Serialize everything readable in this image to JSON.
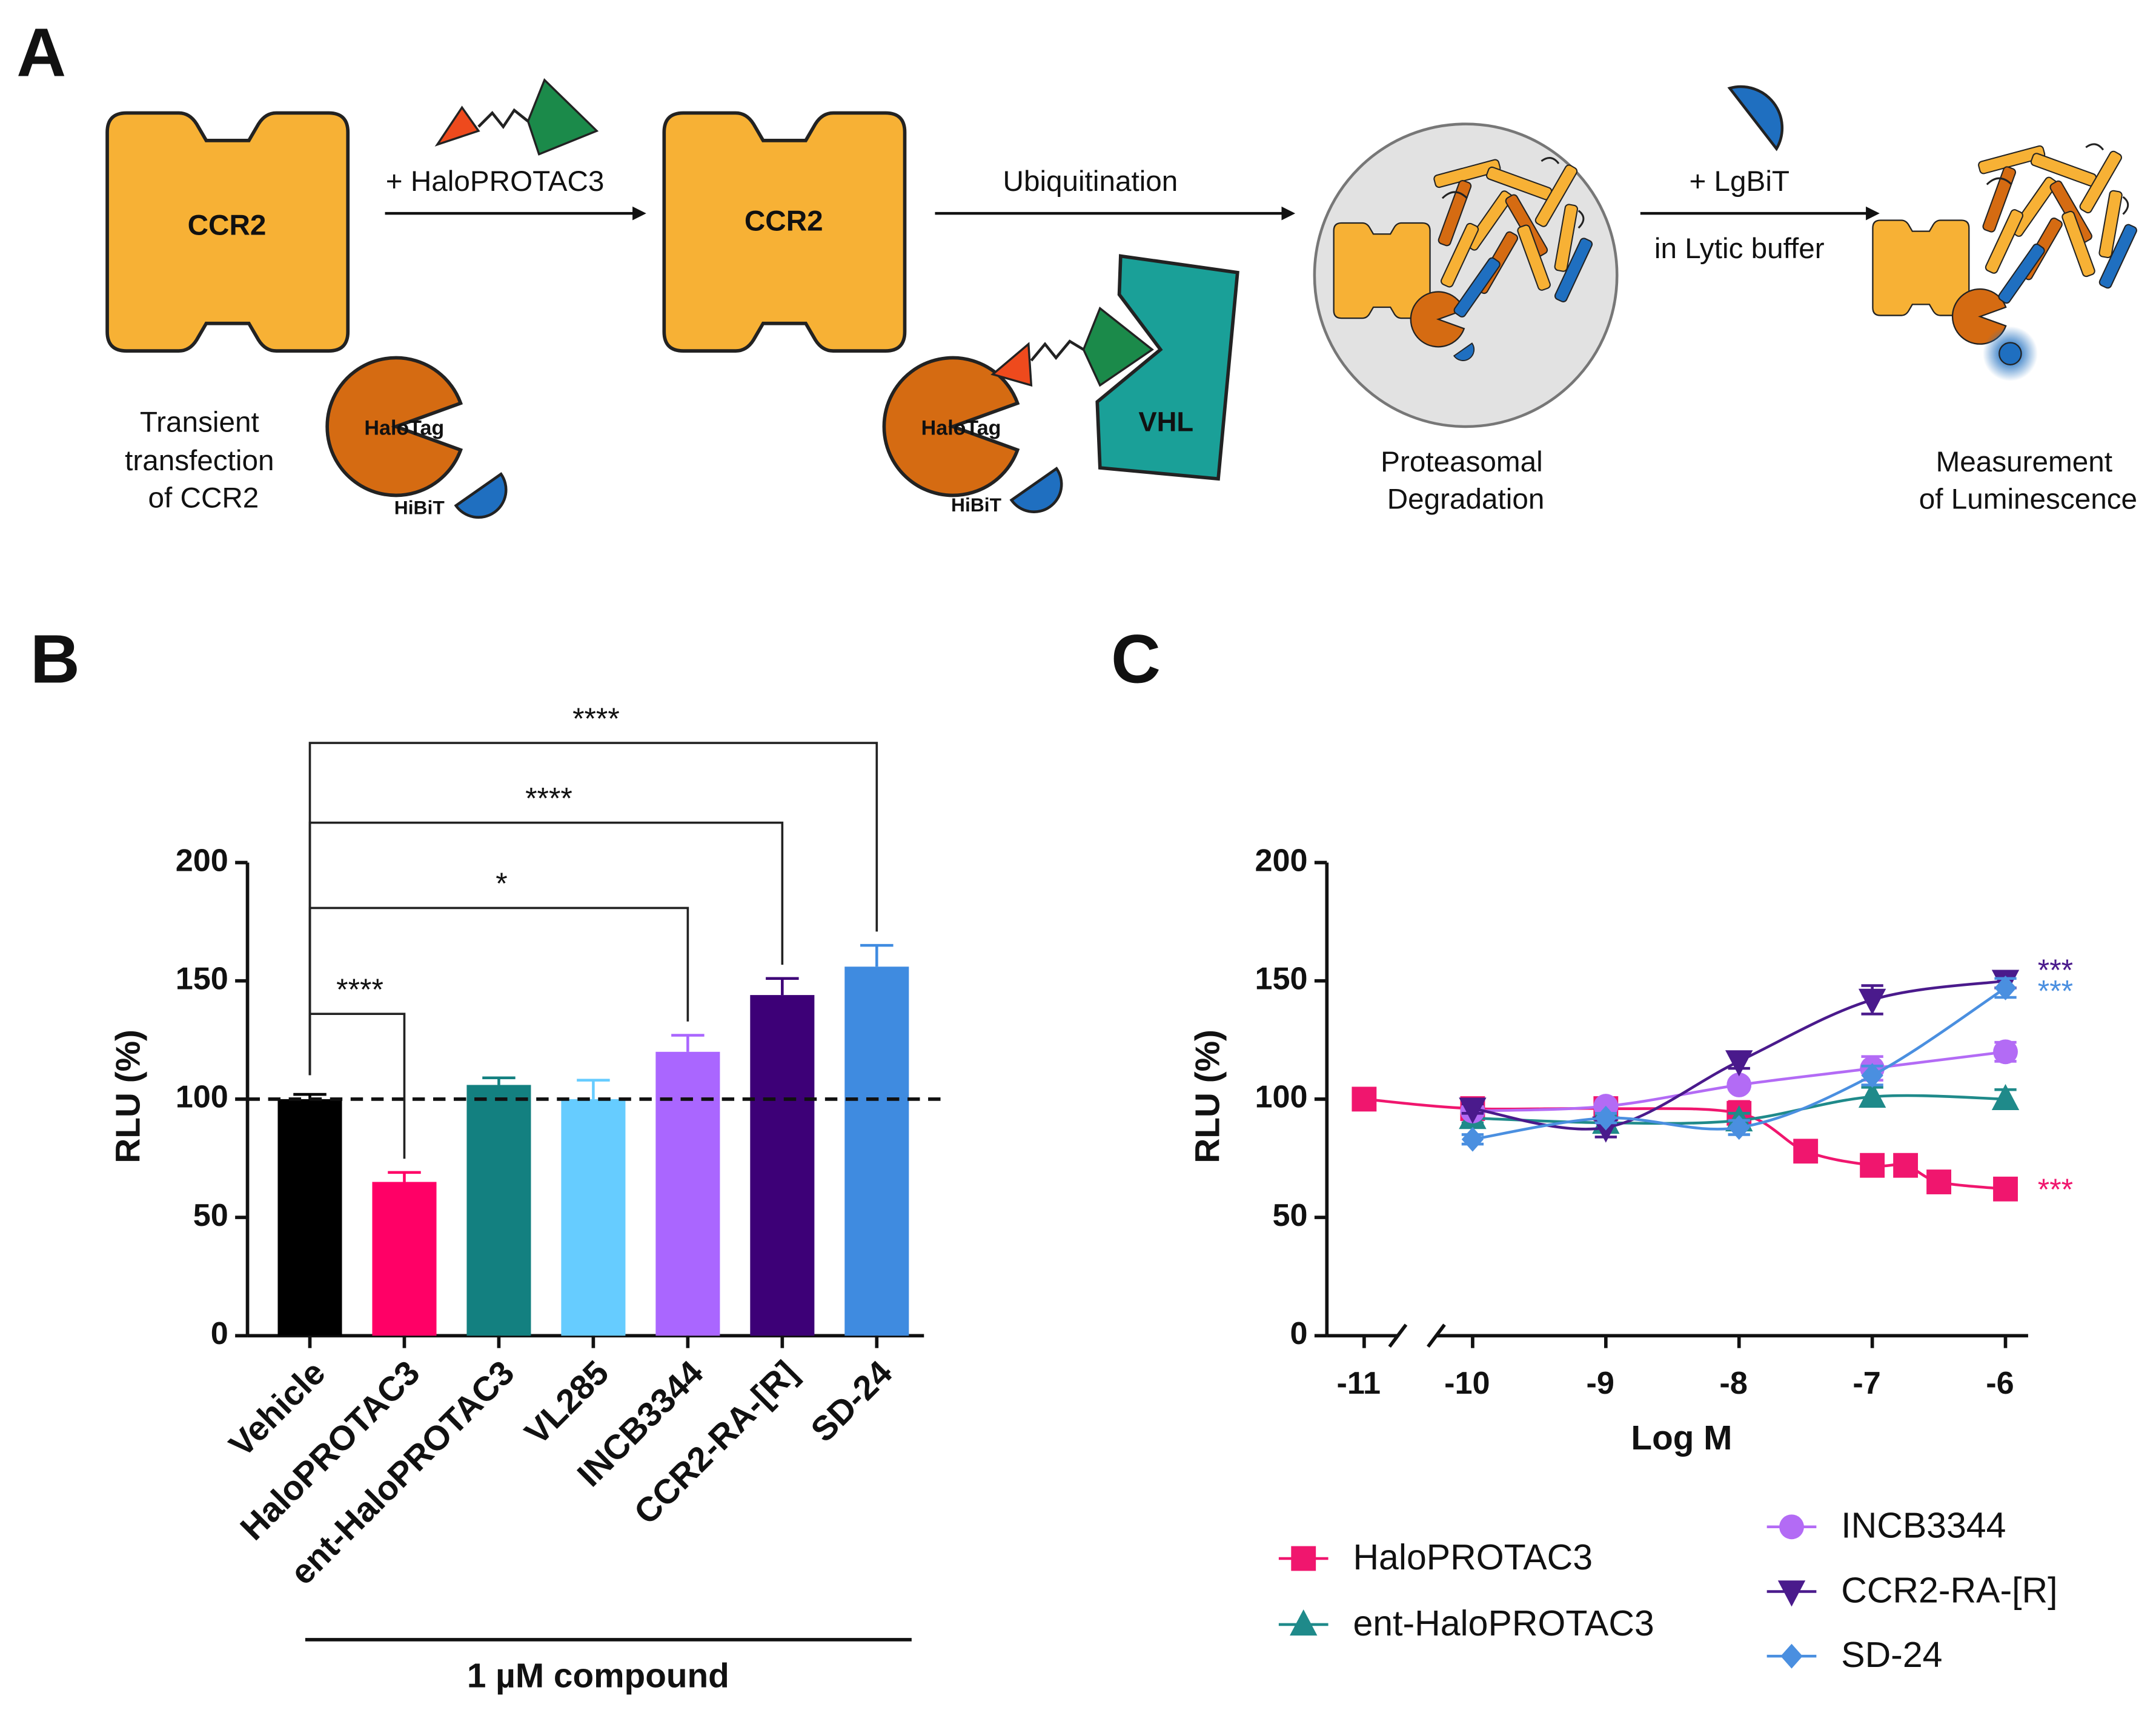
{
  "panel_labels": [
    "A",
    "B",
    "C"
  ],
  "diagram": {
    "ccr2_label": "CCR2",
    "halotag_label": "HaloTag",
    "hibit_label": "HiBiT",
    "vhl_label": "VHL",
    "step1": [
      "Transient",
      "transfection",
      "of CCR2"
    ],
    "arrow1": "+ HaloPROTAC3",
    "arrow2": "Ubiquitination",
    "step3": [
      "Proteasomal",
      "Degradation"
    ],
    "arrow3": [
      "+ LgBiT",
      "in Lytic buffer"
    ],
    "step4": [
      "Measurement",
      "of Luminescence"
    ]
  },
  "chart_data": [
    {
      "type": "bar",
      "categories": [
        "Vehicle",
        "HaloPROTAC3",
        "ent-HaloPROTAC3",
        "VL285",
        "INCB3344",
        "CCR2-RA-[R]",
        "SD-24"
      ],
      "values": [
        100,
        65,
        106,
        100,
        120,
        144,
        156
      ],
      "errors": [
        2,
        4,
        3,
        8,
        7,
        7,
        9
      ],
      "colors": [
        "#000000",
        "#ff0066",
        "#138080",
        "#66ccff",
        "#aa66ff",
        "#3d0077",
        "#3f8be0"
      ],
      "ylim": [
        0,
        200
      ],
      "yticks": [
        0,
        50,
        100,
        150,
        200
      ],
      "ylabel": "RLU (%)",
      "xlabel": "1 µM compound",
      "reference_line": 100,
      "comparisons": [
        {
          "groups": [
            "Vehicle",
            "HaloPROTAC3"
          ],
          "label": "****"
        },
        {
          "groups": [
            "Vehicle",
            "INCB3344"
          ],
          "label": "*"
        },
        {
          "groups": [
            "Vehicle",
            "CCR2-RA-[R]"
          ],
          "label": "****"
        },
        {
          "groups": [
            "Vehicle",
            "SD-24"
          ],
          "label": "****"
        }
      ]
    },
    {
      "type": "line",
      "xlabel": "Log M",
      "ylabel": "RLU (%)",
      "xlim": [
        -11.28,
        -5.83
      ],
      "xticks": [
        -11,
        -10,
        -9,
        -8,
        -7,
        -6
      ],
      "axis_break": true,
      "ylim": [
        0,
        200
      ],
      "yticks": [
        0,
        50,
        100,
        150,
        200
      ],
      "legend": "bottom",
      "series": [
        {
          "name": "HaloPROTAC3",
          "color": "#f0166e",
          "marker": "square",
          "x": [
            -11,
            -10,
            -9,
            -8,
            -7.5,
            -7,
            -6.75,
            -6.5,
            -6
          ],
          "values": [
            100,
            96,
            96,
            94,
            78,
            72,
            72,
            65,
            62
          ],
          "errors": [
            2,
            2,
            2,
            5,
            4,
            3,
            2,
            2,
            4
          ],
          "annotation": "***"
        },
        {
          "name": "ent-HaloPROTAC3",
          "color": "#1f8a8a",
          "marker": "triangle-up",
          "x": [
            -10,
            -9,
            -8,
            -7,
            -6
          ],
          "values": [
            92,
            90,
            91,
            101,
            100
          ],
          "errors": [
            2,
            3,
            3,
            4,
            4
          ]
        },
        {
          "name": "INCB3344",
          "color": "#b36bf5",
          "marker": "circle",
          "x": [
            -10,
            -9,
            -8,
            -7,
            -6
          ],
          "values": [
            95,
            97,
            106,
            113,
            120
          ],
          "errors": [
            2,
            2,
            2,
            5,
            4
          ]
        },
        {
          "name": "CCR2-RA-[R]",
          "color": "#4a1a8c",
          "marker": "triangle-down",
          "x": [
            -10,
            -9,
            -8,
            -7,
            -6
          ],
          "values": [
            96,
            88,
            116,
            142,
            150
          ],
          "errors": [
            2,
            4,
            3,
            6,
            3
          ],
          "annotation": "***"
        },
        {
          "name": "SD-24",
          "color": "#4a8fe0",
          "marker": "diamond",
          "x": [
            -10,
            -9,
            -8,
            -7,
            -6
          ],
          "values": [
            83,
            92,
            88,
            110,
            147
          ],
          "errors": [
            2,
            2,
            3,
            4,
            4
          ],
          "annotation": "***"
        }
      ]
    }
  ]
}
